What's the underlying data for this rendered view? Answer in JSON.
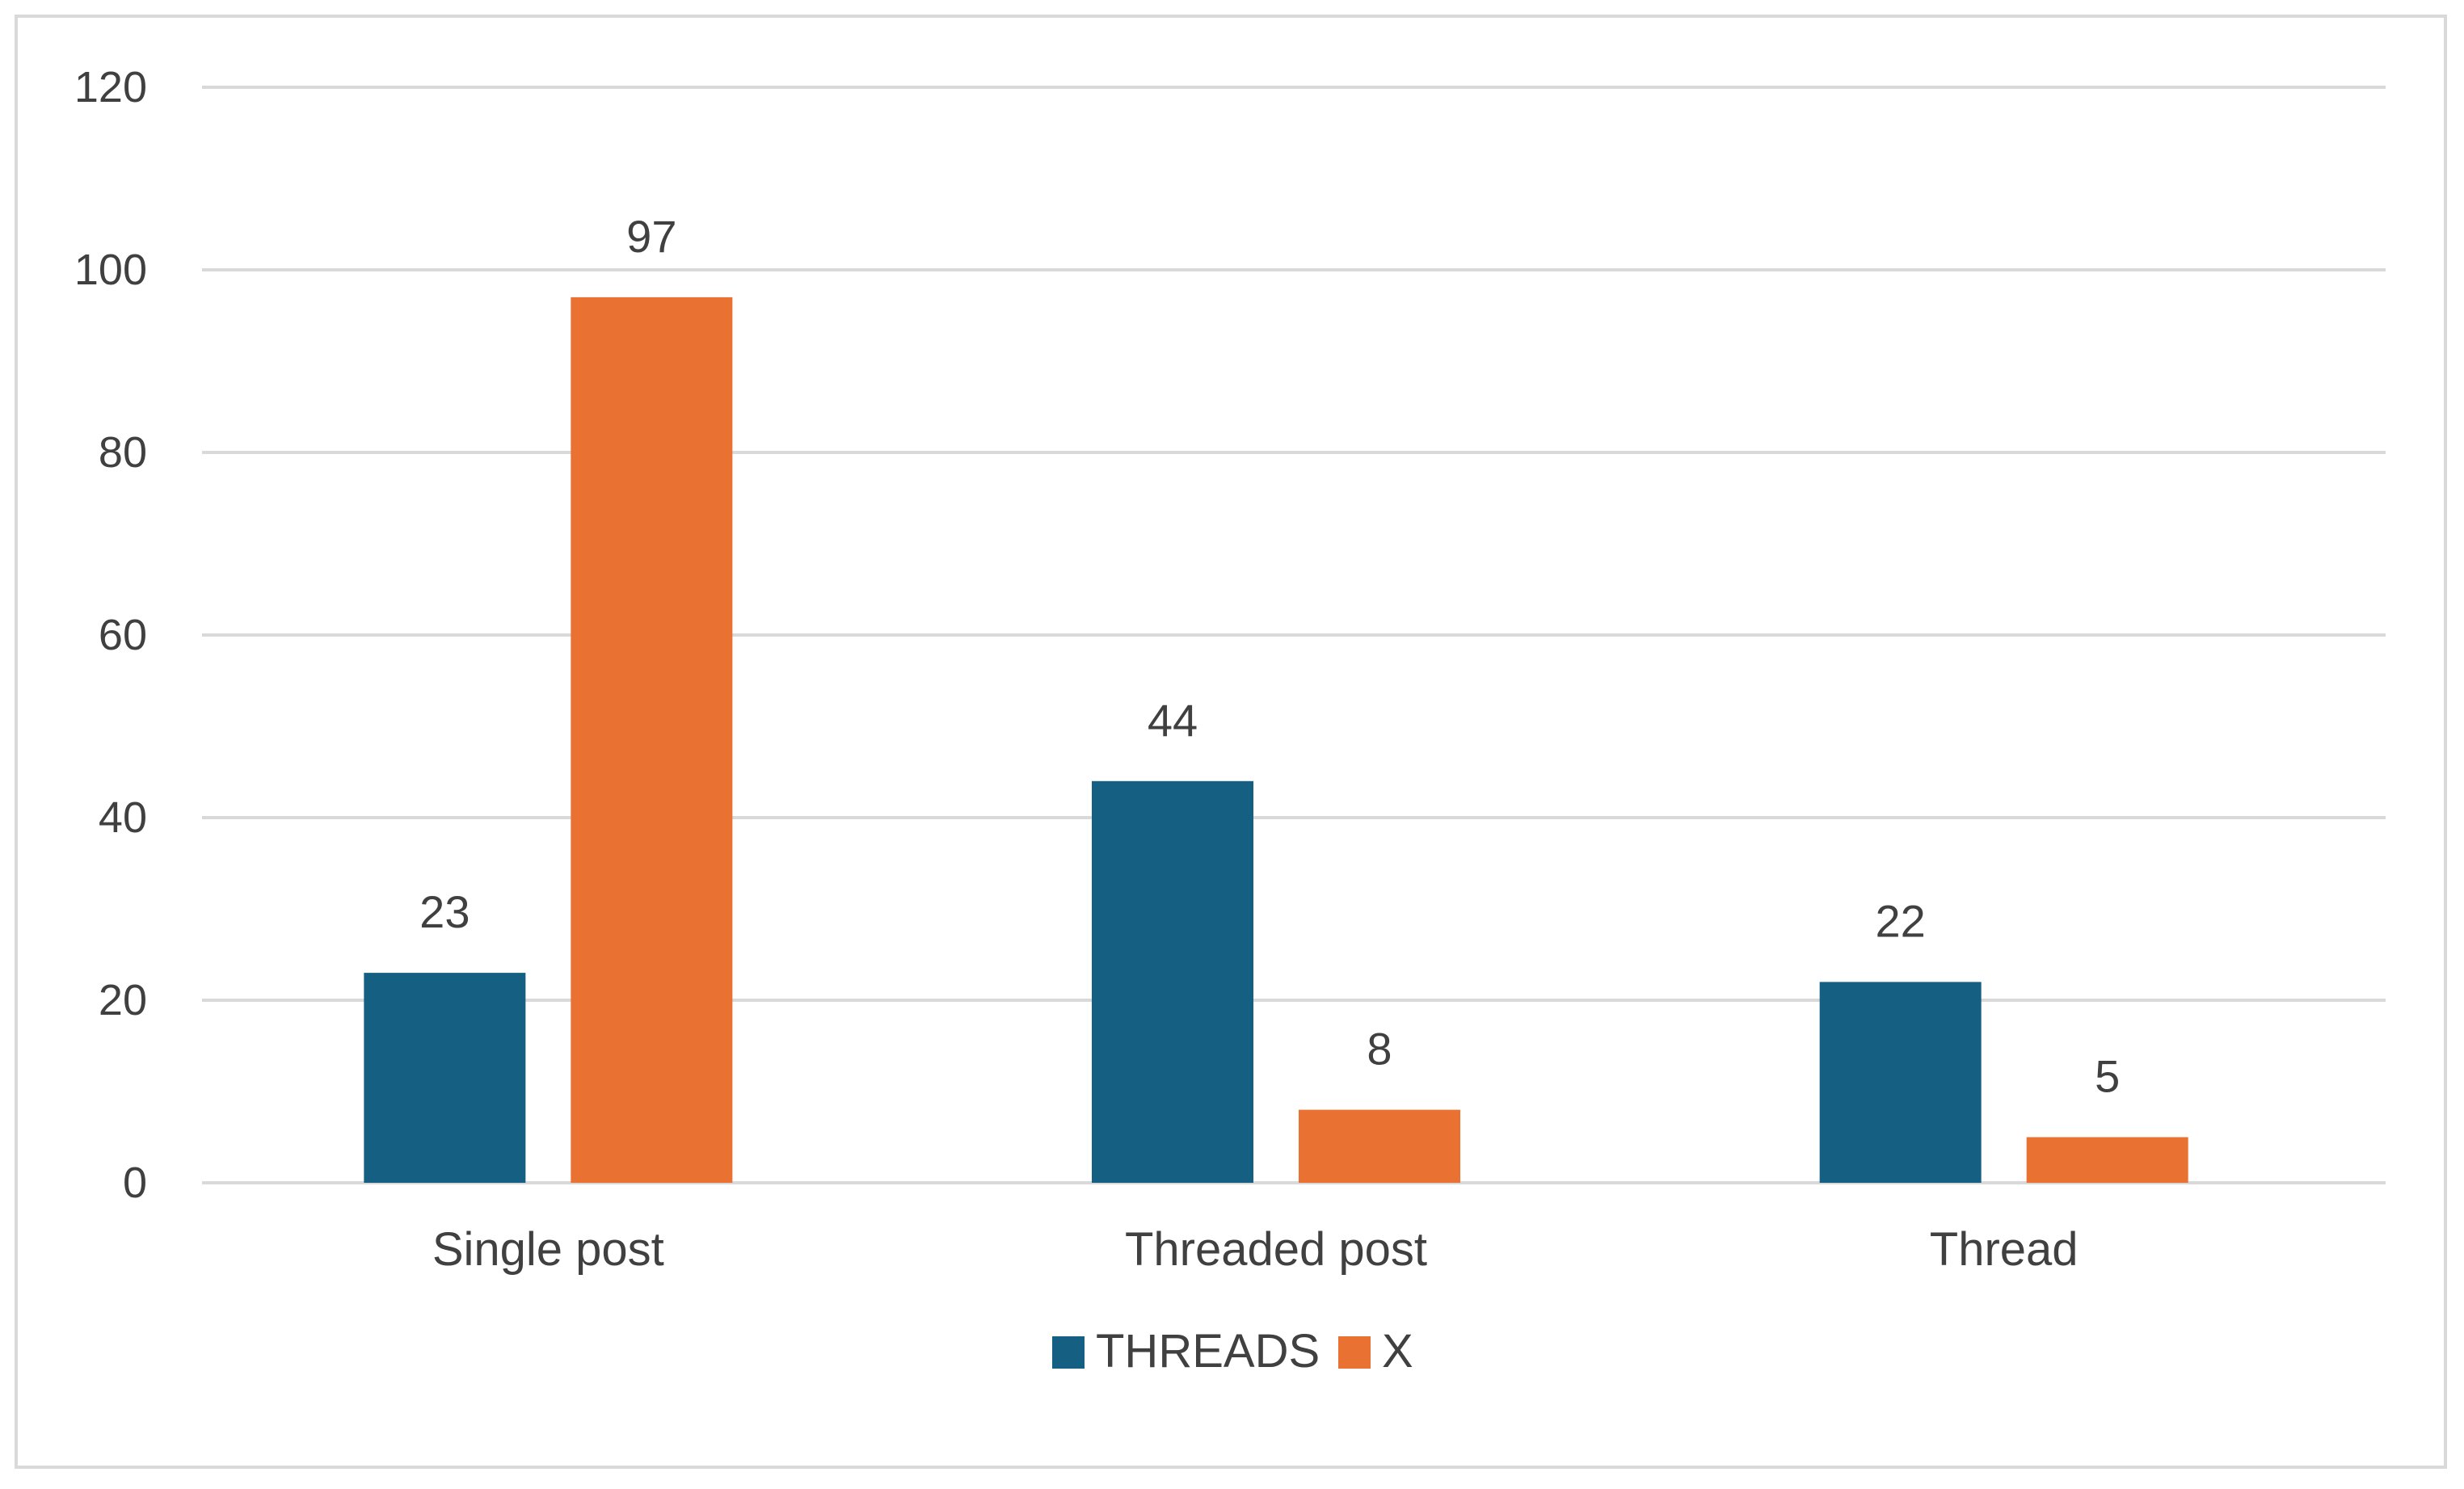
{
  "chart_data": {
    "type": "bar",
    "title": "",
    "xlabel": "",
    "ylabel": "",
    "categories": [
      "Single post",
      "Threaded post",
      "Thread"
    ],
    "series": [
      {
        "name": "THREADS",
        "color": "#156082",
        "values": [
          23,
          44,
          22
        ]
      },
      {
        "name": "X",
        "color": "#E97132",
        "values": [
          97,
          8,
          5
        ]
      }
    ],
    "ylim": [
      0,
      120
    ],
    "yticks": [
      0,
      20,
      40,
      60,
      80,
      100,
      120
    ],
    "grid": true,
    "legend_position": "bottom-center",
    "data_labels": true
  },
  "colors": {
    "gridline": "#d9d9d9",
    "text": "#404040",
    "border": "#d9d9d9"
  }
}
